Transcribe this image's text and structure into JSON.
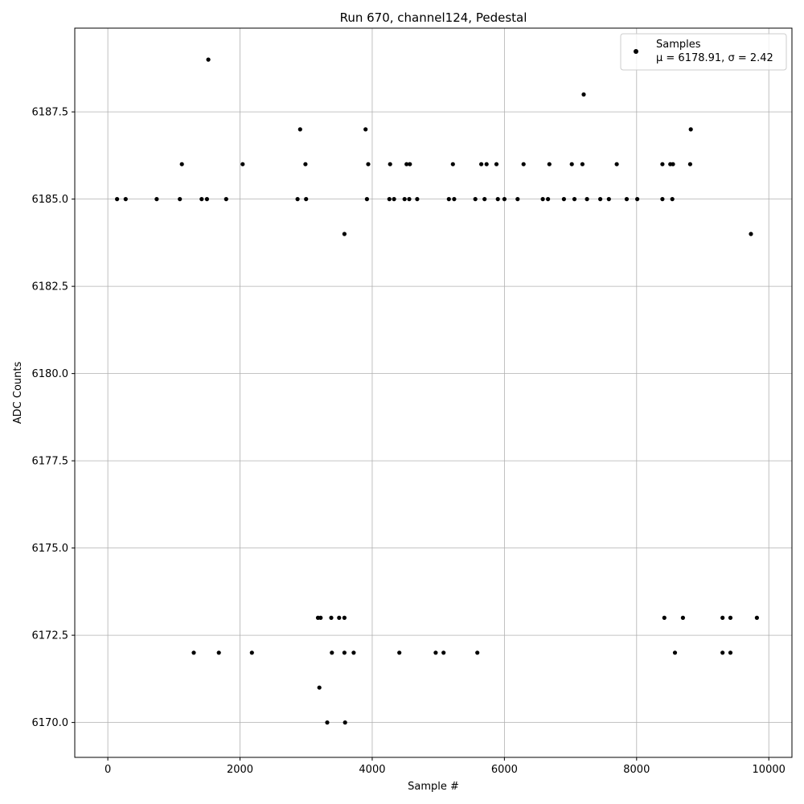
{
  "chart_data": {
    "type": "scatter",
    "title": "Run 670, channel124, Pedestal",
    "xlabel": "Sample #",
    "ylabel": "ADC Counts",
    "xlim": [
      -500,
      10350
    ],
    "ylim": [
      6169.0,
      6189.9
    ],
    "xticks": [
      0,
      2000,
      4000,
      6000,
      8000,
      10000
    ],
    "xtick_labels": [
      "0",
      "2000",
      "4000",
      "6000",
      "8000",
      "10000"
    ],
    "yticks": [
      6170.0,
      6172.5,
      6175.0,
      6177.5,
      6180.0,
      6182.5,
      6185.0,
      6187.5
    ],
    "ytick_labels": [
      "6170.0",
      "6172.5",
      "6175.0",
      "6177.5",
      "6180.0",
      "6182.5",
      "6185.0",
      "6187.5"
    ],
    "grid": true,
    "legend": {
      "placement": "top-right",
      "entries": [
        {
          "label": "Samples",
          "sublabel": "μ = 6178.91, σ = 2.42"
        }
      ]
    },
    "series": [
      {
        "name": "Samples",
        "color": "#000000",
        "points": [
          [
            1520,
            6189
          ],
          [
            7200,
            6188
          ],
          [
            2910,
            6187
          ],
          [
            3900,
            6187
          ],
          [
            8820,
            6187
          ],
          [
            1120,
            6186
          ],
          [
            2040,
            6186
          ],
          [
            2990,
            6186
          ],
          [
            3940,
            6186
          ],
          [
            4270,
            6186
          ],
          [
            4520,
            6186
          ],
          [
            4570,
            6186
          ],
          [
            5220,
            6186
          ],
          [
            5650,
            6186
          ],
          [
            5730,
            6186
          ],
          [
            5880,
            6186
          ],
          [
            6290,
            6186
          ],
          [
            6680,
            6186
          ],
          [
            7020,
            6186
          ],
          [
            7180,
            6186
          ],
          [
            7700,
            6186
          ],
          [
            8390,
            6186
          ],
          [
            8510,
            6186
          ],
          [
            8550,
            6186
          ],
          [
            8810,
            6186
          ],
          [
            140,
            6185
          ],
          [
            270,
            6185
          ],
          [
            740,
            6185
          ],
          [
            1090,
            6185
          ],
          [
            1420,
            6185
          ],
          [
            1500,
            6185
          ],
          [
            1790,
            6185
          ],
          [
            2870,
            6185
          ],
          [
            3000,
            6185
          ],
          [
            3920,
            6185
          ],
          [
            4260,
            6185
          ],
          [
            4330,
            6185
          ],
          [
            4490,
            6185
          ],
          [
            4560,
            6185
          ],
          [
            4680,
            6185
          ],
          [
            5160,
            6185
          ],
          [
            5240,
            6185
          ],
          [
            5560,
            6185
          ],
          [
            5700,
            6185
          ],
          [
            5900,
            6185
          ],
          [
            6000,
            6185
          ],
          [
            6200,
            6185
          ],
          [
            6580,
            6185
          ],
          [
            6660,
            6185
          ],
          [
            6900,
            6185
          ],
          [
            7060,
            6185
          ],
          [
            7250,
            6185
          ],
          [
            7450,
            6185
          ],
          [
            7580,
            6185
          ],
          [
            7850,
            6185
          ],
          [
            8010,
            6185
          ],
          [
            8390,
            6185
          ],
          [
            8540,
            6185
          ],
          [
            9730,
            6184
          ],
          [
            3580,
            6184
          ],
          [
            3180,
            6173
          ],
          [
            3220,
            6173
          ],
          [
            3380,
            6173
          ],
          [
            3500,
            6173
          ],
          [
            3580,
            6173
          ],
          [
            8420,
            6173
          ],
          [
            8700,
            6173
          ],
          [
            9300,
            6173
          ],
          [
            9420,
            6173
          ],
          [
            9820,
            6173
          ],
          [
            1300,
            6172
          ],
          [
            1680,
            6172
          ],
          [
            2180,
            6172
          ],
          [
            3390,
            6172
          ],
          [
            3580,
            6172
          ],
          [
            3720,
            6172
          ],
          [
            4410,
            6172
          ],
          [
            4960,
            6172
          ],
          [
            5080,
            6172
          ],
          [
            5590,
            6172
          ],
          [
            8580,
            6172
          ],
          [
            9300,
            6172
          ],
          [
            9420,
            6172
          ],
          [
            3200,
            6171
          ],
          [
            3320,
            6170
          ],
          [
            3590,
            6170
          ]
        ]
      }
    ]
  }
}
